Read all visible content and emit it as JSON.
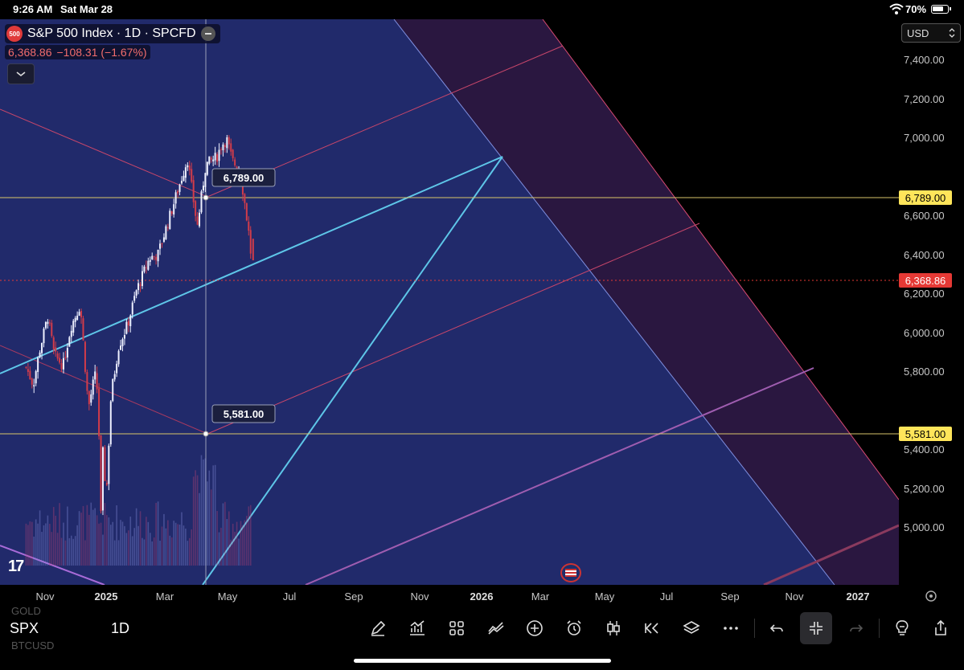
{
  "status_bar": {
    "time": "9:26 AM",
    "date": "Sat Mar 28",
    "battery": "70%"
  },
  "legend": {
    "logo_text": "500",
    "title": "S&P 500 Index · 1D · SPCFD",
    "last": "6,368.86",
    "change": "−108.31 (−1.67%)"
  },
  "currency": "USD",
  "price_axis": [
    "7,400.00",
    "7,200.00",
    "7,000.00",
    "6,600.00",
    "6,400.00",
    "6,200.00",
    "6,000.00",
    "5,800.00",
    "5,400.00",
    "5,200.00",
    "5,000.00"
  ],
  "price_tags": {
    "level_high": "6,789.00",
    "current": "6,368.86",
    "level_low": "5,581.00"
  },
  "chart_labels": {
    "upper": "6,789.00",
    "lower": "5,581.00"
  },
  "time_axis": [
    {
      "label": "Nov",
      "bold": false
    },
    {
      "label": "2025",
      "bold": true
    },
    {
      "label": "Mar",
      "bold": false
    },
    {
      "label": "May",
      "bold": false
    },
    {
      "label": "Jul",
      "bold": false
    },
    {
      "label": "Sep",
      "bold": false
    },
    {
      "label": "Nov",
      "bold": false
    },
    {
      "label": "2026",
      "bold": true
    },
    {
      "label": "Mar",
      "bold": false
    },
    {
      "label": "May",
      "bold": false
    },
    {
      "label": "Jul",
      "bold": false
    },
    {
      "label": "Sep",
      "bold": false
    },
    {
      "label": "Nov",
      "bold": false
    },
    {
      "label": "2027",
      "bold": true
    }
  ],
  "toolbar": {
    "symbol": "SPX",
    "interval": "1D",
    "ghost_top": "GOLD",
    "ghost_bottom": "BTCUSD"
  },
  "colors": {
    "chart_bg": "#212a6b",
    "channel_fill": "#2a1740",
    "accent_line": "#5ec6e8",
    "level_line": "#d9c56a",
    "tag_yellow": "#ffe55a",
    "tag_red": "#e53935",
    "bull": "#eef0ff",
    "bear": "#d23c4a"
  },
  "chart_data": {
    "type": "candlestick",
    "symbol": "S&P 500 Index",
    "interval": "1D",
    "last": 6368.86,
    "horizontal_levels": [
      6789.0,
      5581.0
    ],
    "close_path": [
      [
        "2024-10-15",
        5820
      ],
      [
        "2024-11-01",
        5730
      ],
      [
        "2024-11-15",
        5900
      ],
      [
        "2024-12-05",
        6080
      ],
      [
        "2024-12-20",
        5880
      ],
      [
        "2025-01-10",
        5830
      ],
      [
        "2025-01-28",
        6030
      ],
      [
        "2025-02-19",
        6140
      ],
      [
        "2025-03-10",
        5610
      ],
      [
        "2025-03-25",
        5780
      ],
      [
        "2025-04-02",
        5670
      ],
      [
        "2025-04-08",
        4980
      ],
      [
        "2025-04-10",
        5460
      ],
      [
        "2025-04-21",
        5160
      ],
      [
        "2025-05-02",
        5680
      ],
      [
        "2025-05-20",
        5930
      ],
      [
        "2025-06-10",
        6040
      ],
      [
        "2025-06-30",
        6210
      ],
      [
        "2025-07-31",
        6380
      ],
      [
        "2025-08-20",
        6400
      ],
      [
        "2025-09-30",
        6690
      ],
      [
        "2025-10-28",
        6890
      ],
      [
        "2025-11-20",
        6540
      ],
      [
        "2025-12-10",
        6860
      ],
      [
        "2026-01-05",
        6900
      ],
      [
        "2026-01-15",
        6960
      ],
      [
        "2026-01-28",
        6990
      ],
      [
        "2026-02-10",
        6880
      ],
      [
        "2026-02-28",
        6830
      ],
      [
        "2026-03-12",
        6650
      ],
      [
        "2026-03-20",
        6520
      ],
      [
        "2026-03-27",
        6368.86
      ]
    ]
  }
}
